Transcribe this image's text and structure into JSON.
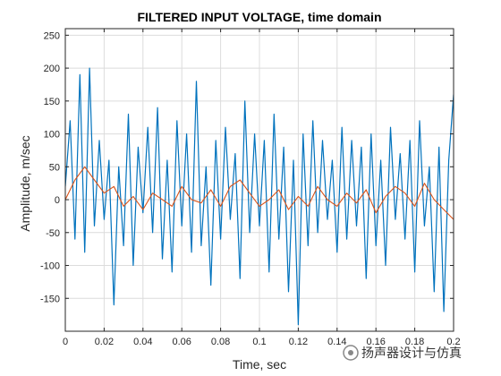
{
  "chart_data": {
    "type": "line",
    "title": "FILTERED INPUT VOLTAGE, time domain",
    "xlabel": "Time, sec",
    "ylabel": "Amplitude, m/sec",
    "xlim": [
      0,
      0.2
    ],
    "ylim": [
      -200,
      260
    ],
    "xticks": [
      "0",
      "0.02",
      "0.04",
      "0.06",
      "0.08",
      "0.1",
      "0.12",
      "0.14",
      "0.16",
      "0.18",
      "0.2"
    ],
    "yticks": [
      "-150",
      "-100",
      "-50",
      "0",
      "50",
      "100",
      "150",
      "200",
      "250"
    ],
    "grid": true,
    "legend": "none",
    "series": [
      {
        "color": "#0072BD",
        "x": [
          0,
          0.0025,
          0.005,
          0.0075,
          0.01,
          0.0125,
          0.015,
          0.0175,
          0.02,
          0.0225,
          0.025,
          0.0275,
          0.03,
          0.0325,
          0.035,
          0.0375,
          0.04,
          0.0425,
          0.045,
          0.0475,
          0.05,
          0.0525,
          0.055,
          0.0575,
          0.06,
          0.0625,
          0.065,
          0.0675,
          0.07,
          0.0725,
          0.075,
          0.0775,
          0.08,
          0.0825,
          0.085,
          0.0875,
          0.09,
          0.0925,
          0.095,
          0.0975,
          0.1,
          0.1025,
          0.105,
          0.1075,
          0.11,
          0.1125,
          0.115,
          0.1175,
          0.12,
          0.1225,
          0.125,
          0.1275,
          0.13,
          0.1325,
          0.135,
          0.1375,
          0.14,
          0.1425,
          0.145,
          0.1475,
          0.15,
          0.1525,
          0.155,
          0.1575,
          0.16,
          0.1625,
          0.165,
          0.1675,
          0.17,
          0.1725,
          0.175,
          0.1775,
          0.18,
          0.1825,
          0.185,
          0.1875,
          0.19,
          0.1925,
          0.195,
          0.1975,
          0.2
        ],
        "y": [
          20,
          120,
          -60,
          190,
          -80,
          200,
          -40,
          90,
          -30,
          60,
          -160,
          50,
          -70,
          130,
          -100,
          80,
          -20,
          110,
          -50,
          140,
          -90,
          60,
          -110,
          120,
          -40,
          100,
          -80,
          180,
          -70,
          50,
          -130,
          90,
          -60,
          110,
          -30,
          70,
          -120,
          150,
          -50,
          100,
          -40,
          90,
          -110,
          130,
          -60,
          80,
          -140,
          60,
          -190,
          100,
          -70,
          120,
          -50,
          90,
          -30,
          60,
          -80,
          110,
          -60,
          90,
          -40,
          80,
          -120,
          100,
          -70,
          60,
          -100,
          110,
          -30,
          70,
          -60,
          90,
          -110,
          120,
          -40,
          50,
          -140,
          80,
          -170,
          60,
          160
        ]
      },
      {
        "color": "#D95319",
        "x": [
          0,
          0.005,
          0.01,
          0.015,
          0.02,
          0.025,
          0.03,
          0.035,
          0.04,
          0.045,
          0.05,
          0.055,
          0.06,
          0.065,
          0.07,
          0.075,
          0.08,
          0.085,
          0.09,
          0.095,
          0.1,
          0.105,
          0.11,
          0.115,
          0.12,
          0.125,
          0.13,
          0.135,
          0.14,
          0.145,
          0.15,
          0.155,
          0.16,
          0.165,
          0.17,
          0.175,
          0.18,
          0.185,
          0.19,
          0.195,
          0.2
        ],
        "y": [
          0,
          30,
          50,
          30,
          10,
          20,
          -10,
          5,
          -15,
          10,
          0,
          -10,
          20,
          0,
          -5,
          15,
          -10,
          20,
          30,
          10,
          -10,
          0,
          15,
          -15,
          5,
          -10,
          20,
          0,
          -10,
          10,
          -5,
          15,
          -20,
          5,
          20,
          10,
          -10,
          25,
          0,
          -15,
          -30
        ]
      }
    ]
  },
  "watermark": {
    "text": "扬声器设计与仿真"
  }
}
